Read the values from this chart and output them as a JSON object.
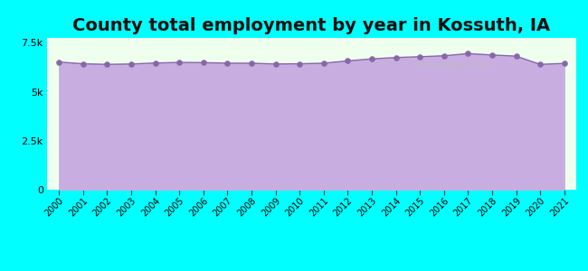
{
  "title": "County total employment by year in Kossuth, IA",
  "title_fontsize": 14,
  "title_fontweight": "bold",
  "background_color": "#00FFFF",
  "plot_bg_color": "#efffee",
  "fill_color": "#c8aee0",
  "line_color": "#8866aa",
  "marker_color": "#8866aa",
  "years": [
    2000,
    2001,
    2002,
    2003,
    2004,
    2005,
    2006,
    2007,
    2008,
    2009,
    2010,
    2011,
    2012,
    2013,
    2014,
    2015,
    2016,
    2017,
    2018,
    2019,
    2020,
    2021
  ],
  "values": [
    6520,
    6430,
    6400,
    6420,
    6470,
    6500,
    6490,
    6460,
    6460,
    6420,
    6430,
    6460,
    6580,
    6680,
    6750,
    6790,
    6840,
    6950,
    6880,
    6820,
    6400,
    6450
  ],
  "ylim": [
    0,
    7750
  ],
  "yticks": [
    0,
    2500,
    5000,
    7500
  ],
  "ytick_labels": [
    "0",
    "2.5k",
    "5k",
    "7.5k"
  ],
  "watermark": "City-Data.com"
}
